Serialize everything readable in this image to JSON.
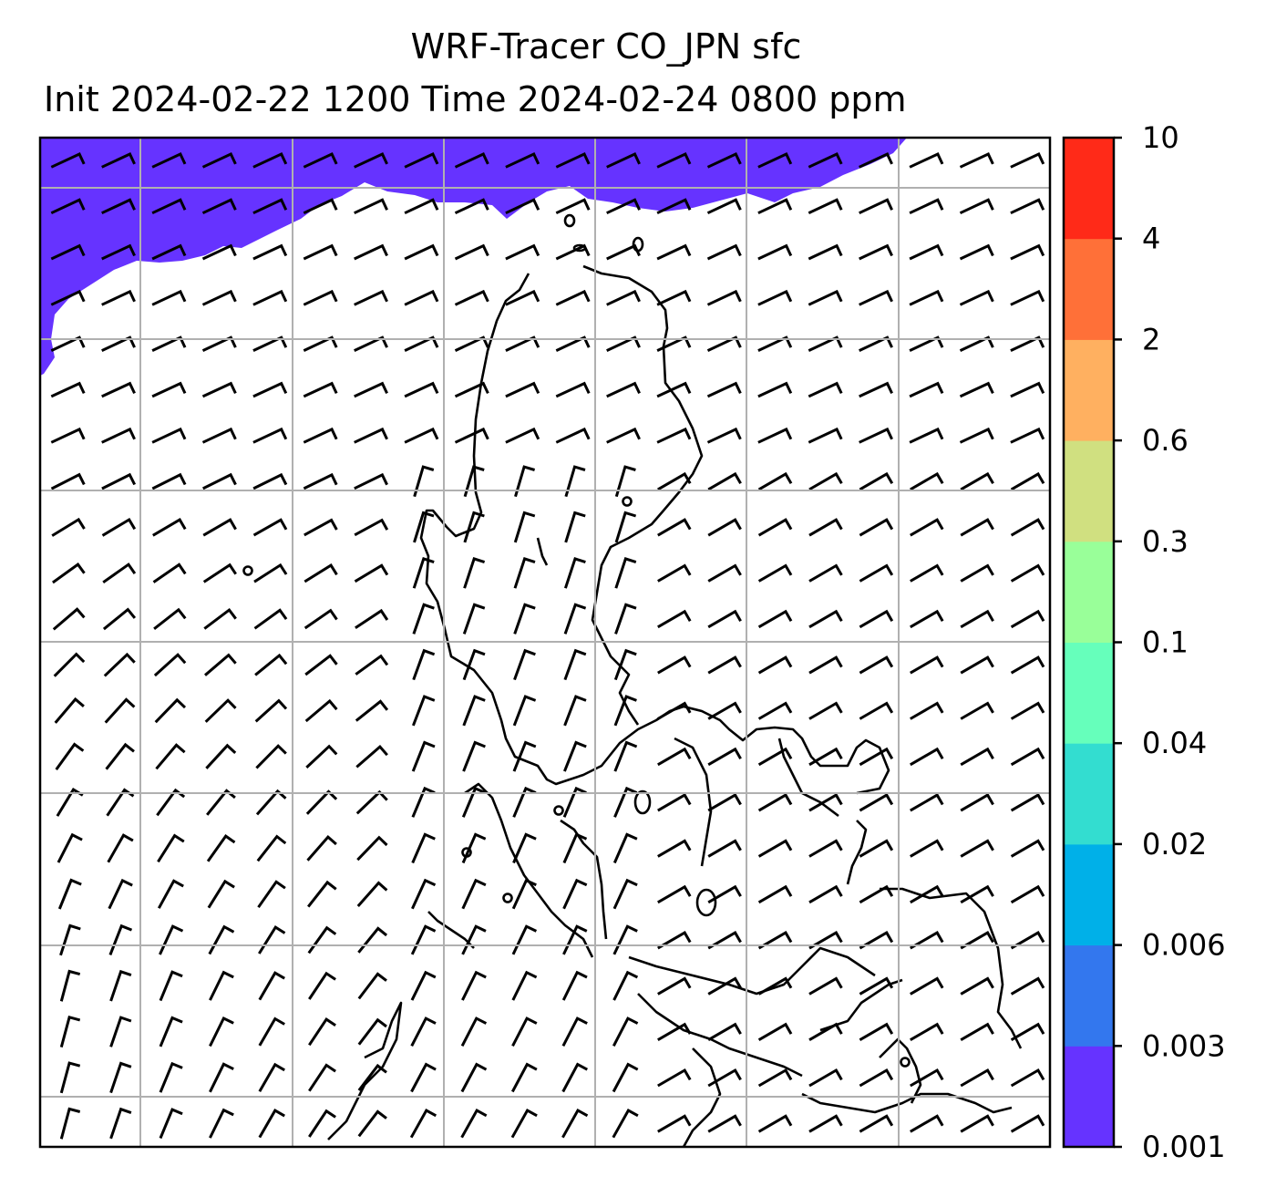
{
  "chart_data": {
    "type": "heatmap",
    "title": "WRF-Tracer CO_JPN sfc",
    "subtitle": "Init 2024-02-22 1200 Time 2024-02-24 0800 ppm",
    "colorbar": {
      "levels": [
        "0.001",
        "0.003",
        "0.006",
        "0.02",
        "0.04",
        "0.1",
        "0.3",
        "0.6",
        "2",
        "4",
        "10"
      ],
      "colors": [
        "#6633ff",
        "#3377ee",
        "#00b0e8",
        "#33ddd0",
        "#66ffbb",
        "#99ff99",
        "#d0e080",
        "#ffb060",
        "#ff7038",
        "#ff2a18"
      ]
    },
    "field": {
      "filled_region": "top-left",
      "filled_bin": "0.001-0.003",
      "rest_of_map": "below 0.001"
    },
    "overlays": {
      "wind_barbs": true,
      "coastlines": true,
      "grid": true
    }
  }
}
